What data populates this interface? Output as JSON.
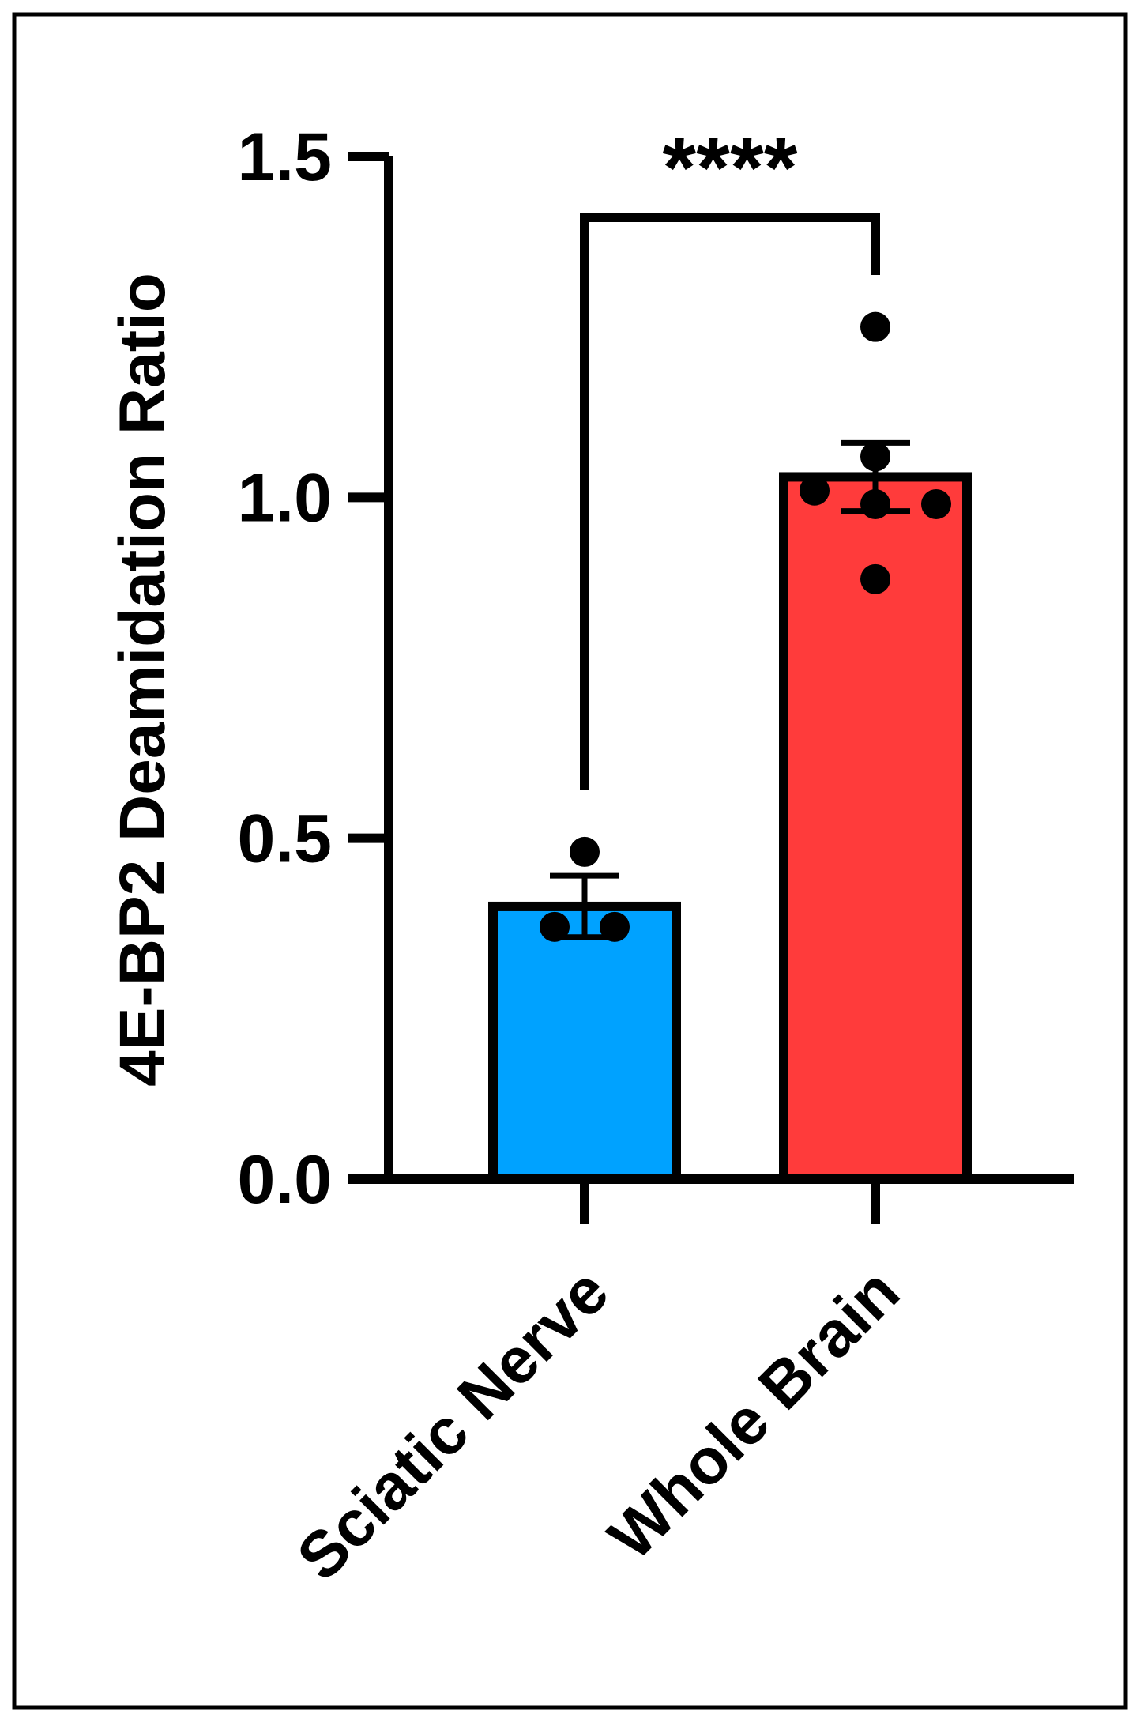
{
  "chart_data": {
    "type": "bar",
    "title": "",
    "xlabel": "",
    "ylabel": "4E-BP2 Deamidation Ratio",
    "ylim": [
      0,
      1.5
    ],
    "yticks": [
      0.0,
      0.5,
      1.0,
      1.5
    ],
    "ytick_labels": [
      "0.0",
      "0.5",
      "1.0",
      "1.5"
    ],
    "categories": [
      "Sciatic Nerve",
      "Whole Brain"
    ],
    "values": [
      0.4,
      1.03
    ],
    "sem": [
      0.045,
      0.05
    ],
    "bar_colors": [
      "#00A2FF",
      "#FF3B3B"
    ],
    "points": [
      [
        0.48,
        0.37,
        0.37
      ],
      [
        1.25,
        1.06,
        1.01,
        0.99,
        0.99,
        0.88
      ]
    ],
    "significance": {
      "label": "****",
      "between": [
        0,
        1
      ]
    },
    "grid": false,
    "legend": "none"
  }
}
